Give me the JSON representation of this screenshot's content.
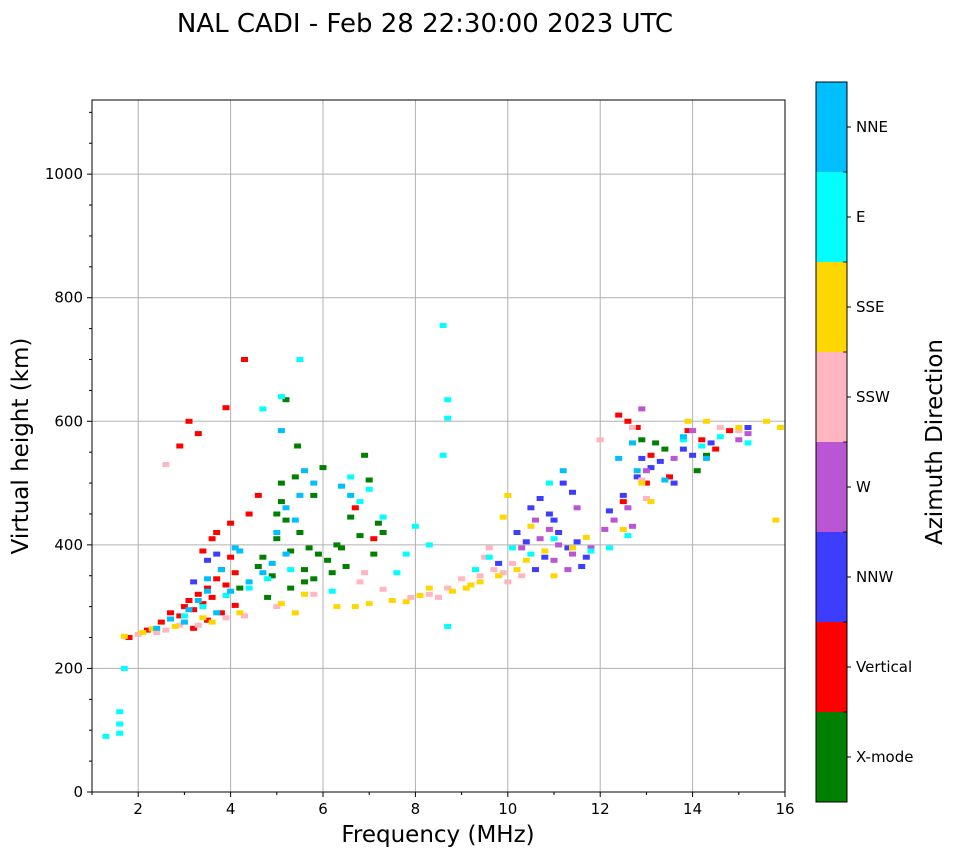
{
  "chart_data": {
    "type": "scatter",
    "subtype": "ionogram",
    "title": "NAL CADI - Feb 28 22:30:00 2023 UTC",
    "xlabel": "Frequency (MHz)",
    "ylabel": "Virtual height (km)",
    "xlim": [
      1,
      16
    ],
    "ylim": [
      0,
      1120
    ],
    "xticks": [
      2,
      4,
      6,
      8,
      10,
      12,
      14,
      16
    ],
    "yticks": [
      0,
      200,
      400,
      600,
      800,
      1000
    ],
    "grid": true,
    "colorbar": {
      "title": "Azimuth Direction",
      "categories": [
        {
          "label": "NNE",
          "color": "#00bfff"
        },
        {
          "label": "E",
          "color": "#00ffff"
        },
        {
          "label": "SSE",
          "color": "#ffd700"
        },
        {
          "label": "SSW",
          "color": "#ffb6c1"
        },
        {
          "label": "W",
          "color": "#ba55d3"
        },
        {
          "label": "NNW",
          "color": "#3d3dff"
        },
        {
          "label": "Vertical",
          "color": "#ff0000"
        },
        {
          "label": "X-mode",
          "color": "#008000"
        }
      ]
    },
    "series": [
      {
        "name": "X-mode",
        "points": [
          [
            4.2,
            330
          ],
          [
            4.6,
            365
          ],
          [
            4.9,
            350
          ],
          [
            5.0,
            410
          ],
          [
            5.1,
            470
          ],
          [
            5.2,
            440
          ],
          [
            5.3,
            390
          ],
          [
            5.4,
            510
          ],
          [
            5.5,
            420
          ],
          [
            5.6,
            360
          ],
          [
            5.7,
            395
          ],
          [
            5.8,
            345
          ],
          [
            5.9,
            385
          ],
          [
            6.0,
            525
          ],
          [
            6.1,
            375
          ],
          [
            6.3,
            400
          ],
          [
            6.5,
            365
          ],
          [
            6.6,
            445
          ],
          [
            6.8,
            415
          ],
          [
            7.0,
            505
          ],
          [
            7.1,
            385
          ],
          [
            7.2,
            435
          ],
          [
            5.1,
            500
          ],
          [
            5.6,
            340
          ],
          [
            5.3,
            330
          ],
          [
            4.8,
            315
          ],
          [
            6.2,
            355
          ],
          [
            6.9,
            545
          ],
          [
            5.45,
            560
          ],
          [
            5.0,
            450
          ],
          [
            4.7,
            380
          ],
          [
            6.4,
            395
          ],
          [
            7.3,
            420
          ],
          [
            5.8,
            480
          ],
          [
            13.2,
            565
          ],
          [
            14.1,
            520
          ],
          [
            14.3,
            545
          ],
          [
            12.9,
            570
          ],
          [
            13.4,
            555
          ],
          [
            5.2,
            635
          ]
        ]
      },
      {
        "name": "Vertical",
        "points": [
          [
            1.8,
            250
          ],
          [
            2.2,
            262
          ],
          [
            2.5,
            275
          ],
          [
            2.7,
            290
          ],
          [
            2.9,
            285
          ],
          [
            3.0,
            300
          ],
          [
            3.1,
            310
          ],
          [
            3.2,
            295
          ],
          [
            3.3,
            320
          ],
          [
            3.4,
            305
          ],
          [
            3.5,
            330
          ],
          [
            3.6,
            315
          ],
          [
            3.7,
            345
          ],
          [
            3.8,
            360
          ],
          [
            3.9,
            335
          ],
          [
            4.0,
            380
          ],
          [
            4.1,
            355
          ],
          [
            3.6,
            410
          ],
          [
            3.4,
            390
          ],
          [
            3.7,
            420
          ],
          [
            4.0,
            435
          ],
          [
            4.4,
            450
          ],
          [
            4.6,
            480
          ],
          [
            3.1,
            600
          ],
          [
            3.3,
            580
          ],
          [
            3.9,
            622
          ],
          [
            4.3,
            700
          ],
          [
            2.9,
            560
          ],
          [
            3.5,
            278
          ],
          [
            3.2,
            265
          ],
          [
            3.8,
            290
          ],
          [
            4.1,
            302
          ],
          [
            12.4,
            610
          ],
          [
            12.6,
            600
          ],
          [
            12.8,
            590
          ],
          [
            13.1,
            545
          ],
          [
            13.5,
            510
          ],
          [
            13.9,
            585
          ],
          [
            14.2,
            570
          ],
          [
            14.5,
            555
          ],
          [
            14.8,
            585
          ],
          [
            12.5,
            470
          ],
          [
            13.0,
            500
          ],
          [
            6.7,
            460
          ],
          [
            7.1,
            410
          ]
        ]
      },
      {
        "name": "NNW",
        "points": [
          [
            3.2,
            340
          ],
          [
            3.5,
            375
          ],
          [
            3.7,
            385
          ],
          [
            10.5,
            460
          ],
          [
            10.7,
            475
          ],
          [
            10.9,
            450
          ],
          [
            11.0,
            440
          ],
          [
            11.1,
            420
          ],
          [
            11.3,
            395
          ],
          [
            11.5,
            405
          ],
          [
            11.7,
            380
          ],
          [
            10.2,
            420
          ],
          [
            10.4,
            405
          ],
          [
            10.8,
            380
          ],
          [
            11.2,
            500
          ],
          [
            11.4,
            485
          ],
          [
            12.2,
            455
          ],
          [
            12.5,
            480
          ],
          [
            12.8,
            510
          ],
          [
            13.3,
            535
          ],
          [
            13.6,
            500
          ],
          [
            13.8,
            555
          ],
          [
            14.0,
            545
          ],
          [
            14.4,
            565
          ],
          [
            15.2,
            590
          ],
          [
            12.9,
            540
          ],
          [
            13.1,
            525
          ],
          [
            11.6,
            365
          ],
          [
            10.6,
            360
          ],
          [
            9.8,
            370
          ]
        ]
      },
      {
        "name": "W",
        "points": [
          [
            10.6,
            440
          ],
          [
            10.9,
            425
          ],
          [
            11.1,
            400
          ],
          [
            11.4,
            385
          ],
          [
            11.8,
            395
          ],
          [
            12.3,
            440
          ],
          [
            12.6,
            460
          ],
          [
            12.9,
            620
          ],
          [
            13.0,
            520
          ],
          [
            13.6,
            540
          ],
          [
            14.0,
            585
          ],
          [
            15.0,
            570
          ],
          [
            15.2,
            580
          ],
          [
            11.0,
            375
          ],
          [
            11.3,
            360
          ],
          [
            10.3,
            395
          ],
          [
            12.1,
            425
          ],
          [
            12.7,
            430
          ],
          [
            10.7,
            410
          ],
          [
            11.5,
            460
          ]
        ]
      },
      {
        "name": "SSW",
        "points": [
          [
            2.0,
            255
          ],
          [
            2.4,
            258
          ],
          [
            2.6,
            262
          ],
          [
            2.9,
            270
          ],
          [
            3.3,
            270
          ],
          [
            3.9,
            282
          ],
          [
            4.3,
            285
          ],
          [
            5.0,
            300
          ],
          [
            5.8,
            320
          ],
          [
            6.8,
            340
          ],
          [
            7.3,
            328
          ],
          [
            7.9,
            315
          ],
          [
            8.3,
            320
          ],
          [
            8.7,
            330
          ],
          [
            9.0,
            345
          ],
          [
            9.4,
            350
          ],
          [
            9.5,
            380
          ],
          [
            9.7,
            360
          ],
          [
            9.9,
            355
          ],
          [
            10.1,
            370
          ],
          [
            10.0,
            340
          ],
          [
            12.7,
            590
          ],
          [
            12.9,
            505
          ],
          [
            13.0,
            475
          ],
          [
            14.6,
            590
          ],
          [
            15.0,
            585
          ],
          [
            2.6,
            530
          ],
          [
            6.9,
            355
          ],
          [
            8.5,
            315
          ],
          [
            9.6,
            395
          ],
          [
            10.3,
            350
          ],
          [
            12.0,
            570
          ]
        ]
      },
      {
        "name": "SSE",
        "points": [
          [
            1.7,
            252
          ],
          [
            2.1,
            258
          ],
          [
            2.3,
            264
          ],
          [
            2.8,
            268
          ],
          [
            3.0,
            275
          ],
          [
            3.4,
            282
          ],
          [
            3.6,
            275
          ],
          [
            4.2,
            290
          ],
          [
            5.1,
            305
          ],
          [
            5.6,
            320
          ],
          [
            6.3,
            300
          ],
          [
            6.7,
            300
          ],
          [
            7.0,
            305
          ],
          [
            7.5,
            310
          ],
          [
            7.8,
            308
          ],
          [
            8.1,
            318
          ],
          [
            8.8,
            325
          ],
          [
            9.1,
            330
          ],
          [
            9.4,
            340
          ],
          [
            9.8,
            350
          ],
          [
            10.2,
            360
          ],
          [
            10.4,
            375
          ],
          [
            10.8,
            390
          ],
          [
            11.0,
            350
          ],
          [
            11.4,
            395
          ],
          [
            11.7,
            412
          ],
          [
            12.5,
            425
          ],
          [
            13.1,
            470
          ],
          [
            13.9,
            600
          ],
          [
            14.3,
            600
          ],
          [
            15.0,
            590
          ],
          [
            15.6,
            600
          ],
          [
            15.9,
            590
          ],
          [
            15.8,
            440
          ],
          [
            10.0,
            480
          ],
          [
            9.9,
            445
          ],
          [
            10.5,
            430
          ],
          [
            12.9,
            500
          ],
          [
            8.3,
            330
          ],
          [
            9.2,
            335
          ],
          [
            5.4,
            290
          ]
        ]
      },
      {
        "name": "E",
        "points": [
          [
            1.6,
            95
          ],
          [
            1.6,
            110
          ],
          [
            1.6,
            130
          ],
          [
            1.7,
            200
          ],
          [
            1.3,
            90
          ],
          [
            3.0,
            285
          ],
          [
            3.4,
            300
          ],
          [
            3.9,
            318
          ],
          [
            4.4,
            330
          ],
          [
            4.8,
            345
          ],
          [
            5.3,
            360
          ],
          [
            6.6,
            510
          ],
          [
            6.8,
            470
          ],
          [
            7.0,
            490
          ],
          [
            7.3,
            445
          ],
          [
            7.8,
            385
          ],
          [
            8.0,
            430
          ],
          [
            8.3,
            400
          ],
          [
            8.6,
            755
          ],
          [
            8.7,
            635
          ],
          [
            8.7,
            605
          ],
          [
            8.6,
            545
          ],
          [
            8.7,
            268
          ],
          [
            9.3,
            360
          ],
          [
            9.6,
            380
          ],
          [
            10.1,
            395
          ],
          [
            10.5,
            385
          ],
          [
            11.0,
            410
          ],
          [
            11.8,
            390
          ],
          [
            13.8,
            570
          ],
          [
            14.2,
            560
          ],
          [
            14.6,
            575
          ],
          [
            15.2,
            565
          ],
          [
            12.2,
            395
          ],
          [
            12.6,
            415
          ],
          [
            5.1,
            640
          ],
          [
            4.7,
            620
          ],
          [
            5.5,
            700
          ],
          [
            7.6,
            355
          ],
          [
            6.2,
            325
          ],
          [
            10.9,
            500
          ]
        ]
      },
      {
        "name": "NNE",
        "points": [
          [
            2.7,
            280
          ],
          [
            3.0,
            275
          ],
          [
            3.3,
            310
          ],
          [
            3.5,
            325
          ],
          [
            3.7,
            290
          ],
          [
            4.0,
            325
          ],
          [
            4.4,
            340
          ],
          [
            4.7,
            355
          ],
          [
            4.9,
            370
          ],
          [
            5.2,
            385
          ],
          [
            5.0,
            420
          ],
          [
            5.2,
            460
          ],
          [
            5.4,
            440
          ],
          [
            5.5,
            480
          ],
          [
            5.6,
            520
          ],
          [
            5.8,
            500
          ],
          [
            3.5,
            345
          ],
          [
            3.8,
            360
          ],
          [
            4.2,
            390
          ],
          [
            6.4,
            495
          ],
          [
            6.6,
            480
          ],
          [
            12.4,
            540
          ],
          [
            12.8,
            520
          ],
          [
            13.4,
            505
          ],
          [
            13.8,
            575
          ],
          [
            14.3,
            540
          ],
          [
            12.7,
            565
          ],
          [
            11.2,
            520
          ],
          [
            5.1,
            585
          ],
          [
            4.1,
            395
          ],
          [
            2.4,
            265
          ],
          [
            3.1,
            295
          ]
        ]
      }
    ]
  }
}
